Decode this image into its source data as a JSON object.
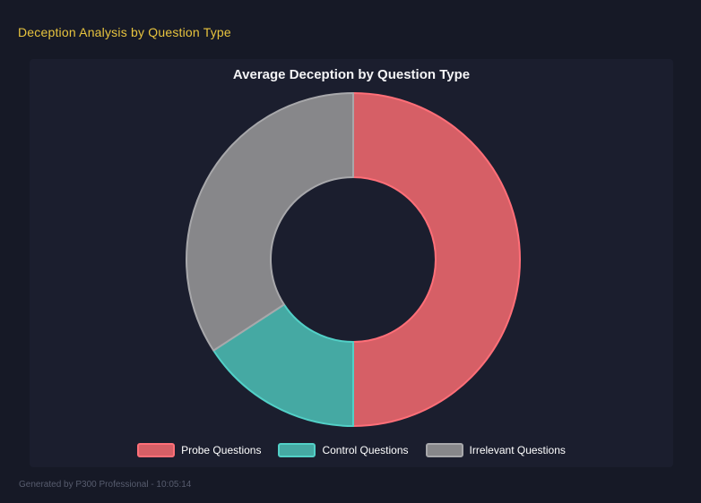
{
  "page": {
    "title": "Deception Analysis by Question Type",
    "footer": "Generated by P300 Professional - 10:05:14",
    "accent_yellow": "#e8c43e",
    "background": "#161926",
    "panel_background": "#1b1e2e"
  },
  "chart_data": {
    "type": "pie",
    "subtype": "doughnut",
    "title": "Average Deception by Question Type",
    "categories": [
      "Probe Questions",
      "Control Questions",
      "Irrelevant Questions"
    ],
    "values_percent_estimated": [
      50,
      15.8,
      34.2
    ],
    "colors": [
      {
        "fill": "#d65f66",
        "border": "#ff6f78"
      },
      {
        "fill": "#45a9a3",
        "border": "#52d0c7"
      },
      {
        "fill": "#87878a",
        "border": "#a8a8ab"
      }
    ],
    "legend_position": "bottom",
    "start_angle": "top",
    "direction": "clockwise",
    "cutout_percent": 49
  }
}
